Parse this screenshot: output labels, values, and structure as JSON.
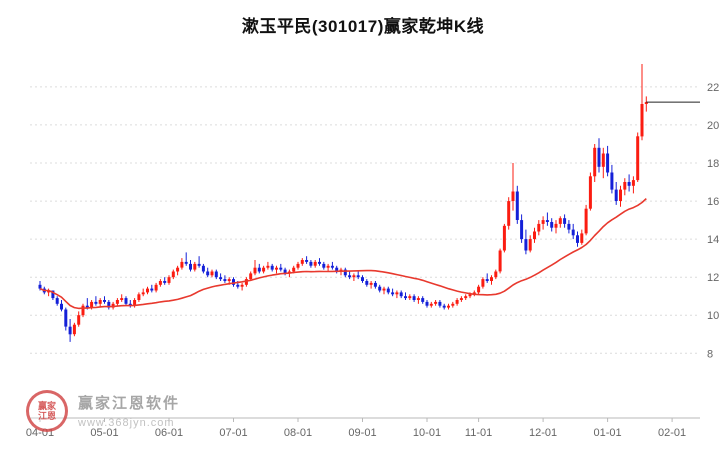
{
  "title": "漱玉平民(301017)赢家乾坤K线",
  "watermark": {
    "brand": "赢家江恩软件",
    "url": "www.368jyn.com",
    "logo_text": "赢家 江恩"
  },
  "colors": {
    "up": "#fb1c11",
    "down": "#1420d8",
    "ma": "#e8392e",
    "grid": "#dcdcdc",
    "axis_line": "#b9b9b9",
    "axis_text": "#666666",
    "price_line": "#222222"
  },
  "chart_data": {
    "type": "candlestick",
    "title": "漱玉平民(301017)赢家乾坤K线",
    "symbol": "301017",
    "name": "漱玉平民",
    "ylim": [
      4.6,
      24.2
    ],
    "y_ticks": [
      8,
      10,
      12,
      14,
      16,
      18,
      20,
      22
    ],
    "x_ticks": [
      {
        "label": "04-01",
        "i": 0
      },
      {
        "label": "05-01",
        "i": 15
      },
      {
        "label": "06-01",
        "i": 30
      },
      {
        "label": "07-01",
        "i": 45
      },
      {
        "label": "08-01",
        "i": 60
      },
      {
        "label": "09-01",
        "i": 75
      },
      {
        "label": "10-01",
        "i": 90
      },
      {
        "label": "11-01",
        "i": 102
      },
      {
        "label": "12-01",
        "i": 117
      },
      {
        "label": "01-01",
        "i": 132
      },
      {
        "label": "02-01",
        "i": 147
      }
    ],
    "ma_window": 30,
    "last_price": 21.2,
    "candles": [
      [
        11.6,
        11.8,
        11.3,
        11.4
      ],
      [
        11.4,
        11.5,
        11.1,
        11.2
      ],
      [
        11.2,
        11.4,
        11.0,
        11.3
      ],
      [
        11.3,
        11.3,
        10.8,
        10.9
      ],
      [
        10.9,
        11.0,
        10.5,
        10.6
      ],
      [
        10.6,
        10.8,
        10.2,
        10.3
      ],
      [
        10.3,
        10.4,
        9.2,
        9.4
      ],
      [
        9.4,
        9.8,
        8.6,
        9.0
      ],
      [
        9.0,
        9.6,
        8.9,
        9.5
      ],
      [
        9.5,
        10.2,
        9.4,
        10.0
      ],
      [
        10.0,
        10.6,
        9.9,
        10.5
      ],
      [
        10.5,
        10.9,
        10.3,
        10.4
      ],
      [
        10.4,
        10.8,
        10.3,
        10.7
      ],
      [
        10.7,
        11.0,
        10.5,
        10.6
      ],
      [
        10.6,
        10.9,
        10.4,
        10.8
      ],
      [
        10.8,
        11.0,
        10.6,
        10.7
      ],
      [
        10.7,
        10.8,
        10.3,
        10.4
      ],
      [
        10.4,
        10.7,
        10.3,
        10.6
      ],
      [
        10.6,
        10.9,
        10.5,
        10.8
      ],
      [
        10.8,
        11.1,
        10.7,
        10.9
      ],
      [
        10.9,
        11.0,
        10.5,
        10.6
      ],
      [
        10.6,
        10.8,
        10.4,
        10.5
      ],
      [
        10.5,
        10.9,
        10.4,
        10.8
      ],
      [
        10.8,
        11.2,
        10.7,
        11.1
      ],
      [
        11.1,
        11.4,
        11.0,
        11.2
      ],
      [
        11.2,
        11.5,
        11.1,
        11.4
      ],
      [
        11.4,
        11.6,
        11.2,
        11.3
      ],
      [
        11.3,
        11.7,
        11.2,
        11.6
      ],
      [
        11.6,
        11.9,
        11.5,
        11.8
      ],
      [
        11.8,
        12.0,
        11.6,
        11.7
      ],
      [
        11.7,
        12.1,
        11.6,
        12.0
      ],
      [
        12.0,
        12.4,
        11.9,
        12.3
      ],
      [
        12.3,
        12.6,
        12.1,
        12.5
      ],
      [
        12.5,
        13.0,
        12.4,
        12.8
      ],
      [
        12.8,
        13.3,
        12.6,
        12.7
      ],
      [
        12.7,
        12.9,
        12.3,
        12.4
      ],
      [
        12.4,
        12.8,
        12.3,
        12.7
      ],
      [
        12.7,
        13.1,
        12.5,
        12.6
      ],
      [
        12.6,
        12.7,
        12.2,
        12.3
      ],
      [
        12.3,
        12.5,
        12.0,
        12.1
      ],
      [
        12.1,
        12.4,
        12.0,
        12.3
      ],
      [
        12.3,
        12.4,
        11.9,
        12.0
      ],
      [
        12.0,
        12.2,
        11.8,
        11.9
      ],
      [
        11.9,
        12.1,
        11.7,
        11.8
      ],
      [
        11.8,
        12.0,
        11.6,
        11.9
      ],
      [
        11.9,
        12.0,
        11.5,
        11.6
      ],
      [
        11.6,
        11.8,
        11.4,
        11.5
      ],
      [
        11.5,
        11.7,
        11.3,
        11.6
      ],
      [
        11.6,
        12.0,
        11.5,
        11.9
      ],
      [
        11.9,
        12.3,
        11.8,
        12.2
      ],
      [
        12.2,
        12.9,
        12.1,
        12.5
      ],
      [
        12.5,
        12.7,
        12.2,
        12.3
      ],
      [
        12.3,
        12.6,
        12.2,
        12.5
      ],
      [
        12.5,
        12.8,
        12.4,
        12.6
      ],
      [
        12.6,
        12.7,
        12.3,
        12.4
      ],
      [
        12.4,
        12.6,
        12.2,
        12.5
      ],
      [
        12.5,
        12.7,
        12.3,
        12.4
      ],
      [
        12.4,
        12.5,
        12.1,
        12.2
      ],
      [
        12.2,
        12.4,
        12.0,
        12.3
      ],
      [
        12.3,
        12.6,
        12.2,
        12.5
      ],
      [
        12.5,
        12.8,
        12.4,
        12.7
      ],
      [
        12.7,
        13.0,
        12.6,
        12.9
      ],
      [
        12.9,
        13.1,
        12.7,
        12.8
      ],
      [
        12.8,
        12.9,
        12.5,
        12.6
      ],
      [
        12.6,
        12.9,
        12.5,
        12.8
      ],
      [
        12.8,
        13.0,
        12.6,
        12.7
      ],
      [
        12.7,
        12.8,
        12.4,
        12.5
      ],
      [
        12.5,
        12.7,
        12.3,
        12.6
      ],
      [
        12.6,
        12.8,
        12.4,
        12.5
      ],
      [
        12.5,
        12.6,
        12.2,
        12.3
      ],
      [
        12.3,
        12.5,
        12.1,
        12.4
      ],
      [
        12.4,
        12.5,
        12.0,
        12.1
      ],
      [
        12.1,
        12.3,
        11.9,
        12.0
      ],
      [
        12.0,
        12.2,
        11.8,
        12.1
      ],
      [
        12.1,
        12.3,
        11.9,
        12.0
      ],
      [
        12.0,
        12.1,
        11.7,
        11.8
      ],
      [
        11.8,
        11.9,
        11.5,
        11.6
      ],
      [
        11.6,
        11.8,
        11.4,
        11.7
      ],
      [
        11.7,
        11.8,
        11.4,
        11.5
      ],
      [
        11.5,
        11.6,
        11.2,
        11.3
      ],
      [
        11.3,
        11.5,
        11.1,
        11.4
      ],
      [
        11.4,
        11.5,
        11.1,
        11.2
      ],
      [
        11.2,
        11.4,
        11.0,
        11.1
      ],
      [
        11.1,
        11.3,
        10.9,
        11.2
      ],
      [
        11.2,
        11.3,
        10.9,
        11.0
      ],
      [
        11.0,
        11.2,
        10.8,
        10.9
      ],
      [
        10.9,
        11.1,
        10.8,
        11.0
      ],
      [
        11.0,
        11.1,
        10.7,
        10.8
      ],
      [
        10.8,
        11.0,
        10.6,
        10.9
      ],
      [
        10.9,
        11.0,
        10.6,
        10.7
      ],
      [
        10.7,
        10.8,
        10.4,
        10.5
      ],
      [
        10.5,
        10.7,
        10.4,
        10.6
      ],
      [
        10.6,
        10.8,
        10.5,
        10.7
      ],
      [
        10.7,
        10.8,
        10.4,
        10.5
      ],
      [
        10.5,
        10.6,
        10.3,
        10.4
      ],
      [
        10.4,
        10.6,
        10.3,
        10.5
      ],
      [
        10.5,
        10.7,
        10.4,
        10.6
      ],
      [
        10.6,
        10.9,
        10.5,
        10.8
      ],
      [
        10.8,
        11.0,
        10.7,
        10.9
      ],
      [
        10.9,
        11.1,
        10.8,
        11.0
      ],
      [
        11.0,
        11.2,
        10.9,
        11.1
      ],
      [
        11.1,
        11.3,
        11.0,
        11.2
      ],
      [
        11.2,
        11.6,
        11.1,
        11.5
      ],
      [
        11.5,
        12.0,
        11.4,
        11.9
      ],
      [
        11.9,
        12.2,
        11.7,
        11.8
      ],
      [
        11.8,
        12.1,
        11.6,
        12.0
      ],
      [
        12.0,
        12.4,
        11.9,
        12.3
      ],
      [
        12.3,
        13.5,
        12.2,
        13.4
      ],
      [
        13.4,
        14.8,
        13.3,
        14.7
      ],
      [
        14.7,
        16.2,
        14.5,
        16.0
      ],
      [
        16.0,
        18.0,
        15.5,
        16.5
      ],
      [
        16.5,
        16.8,
        14.8,
        15.0
      ],
      [
        15.0,
        15.3,
        13.8,
        14.0
      ],
      [
        14.0,
        14.5,
        13.2,
        13.4
      ],
      [
        13.4,
        14.2,
        13.3,
        14.0
      ],
      [
        14.0,
        14.6,
        13.8,
        14.4
      ],
      [
        14.4,
        15.0,
        14.2,
        14.8
      ],
      [
        14.8,
        15.2,
        14.5,
        15.0
      ],
      [
        15.0,
        15.4,
        14.7,
        14.9
      ],
      [
        14.9,
        15.1,
        14.4,
        14.6
      ],
      [
        14.6,
        15.0,
        14.3,
        14.8
      ],
      [
        14.8,
        15.2,
        14.6,
        15.1
      ],
      [
        15.1,
        15.3,
        14.6,
        14.8
      ],
      [
        14.8,
        15.0,
        14.3,
        14.5
      ],
      [
        14.5,
        14.8,
        14.0,
        14.2
      ],
      [
        14.2,
        14.4,
        13.6,
        13.8
      ],
      [
        13.8,
        14.5,
        13.7,
        14.3
      ],
      [
        14.3,
        15.8,
        14.2,
        15.6
      ],
      [
        15.6,
        17.5,
        15.5,
        17.3
      ],
      [
        17.3,
        19.0,
        17.0,
        18.8
      ],
      [
        18.8,
        19.3,
        17.5,
        17.8
      ],
      [
        17.8,
        18.8,
        17.2,
        18.5
      ],
      [
        18.5,
        18.9,
        17.3,
        17.5
      ],
      [
        17.5,
        17.9,
        16.4,
        16.6
      ],
      [
        16.6,
        17.0,
        15.8,
        16.0
      ],
      [
        16.0,
        16.8,
        15.7,
        16.6
      ],
      [
        16.6,
        17.2,
        16.3,
        17.0
      ],
      [
        17.0,
        17.4,
        16.5,
        16.8
      ],
      [
        16.8,
        17.3,
        16.4,
        17.1
      ],
      [
        17.1,
        19.6,
        17.0,
        19.4
      ],
      [
        19.4,
        23.2,
        19.2,
        21.1
      ],
      [
        21.1,
        21.5,
        20.7,
        21.2
      ]
    ]
  }
}
